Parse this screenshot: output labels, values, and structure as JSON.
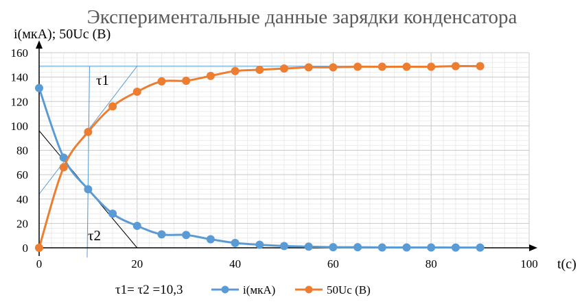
{
  "chart_data": {
    "type": "line",
    "title": "Экспериментальные данные зарядки конденсатора",
    "ylabel": "i(мкА); 50Uc (В)",
    "xlabel": "t(c)",
    "xlim": [
      0,
      100
    ],
    "ylim": [
      0,
      160
    ],
    "x_ticks": [
      "0",
      "20",
      "40",
      "60",
      "80",
      "100"
    ],
    "y_ticks": [
      "0",
      "20",
      "40",
      "60",
      "80",
      "100",
      "120",
      "140",
      "160"
    ],
    "grid": true,
    "legend_placement": "bottom",
    "x": [
      0,
      5,
      10,
      15,
      20,
      25,
      30,
      35,
      40,
      45,
      50,
      55,
      60,
      65,
      70,
      75,
      80,
      85,
      90
    ],
    "series": [
      {
        "name": "i(мкА)",
        "color": "#5B9BD5",
        "values": [
          131,
          74,
          48,
          28,
          18,
          11,
          10.5,
          7,
          4,
          2.5,
          1.5,
          1,
          0.5,
          0.5,
          0.3,
          0.3,
          0.3,
          0.2,
          0.2
        ]
      },
      {
        "name": "50Uc (В)",
        "color": "#ED7D31",
        "values": [
          0,
          66,
          95,
          116,
          128,
          136.5,
          137,
          141,
          145,
          146,
          147,
          148,
          148,
          148.5,
          148.5,
          148.5,
          148.5,
          149,
          149
        ]
      }
    ],
    "annotations": {
      "tau1_label": "τ1",
      "tau2_label": "τ2",
      "footer": "τ1= τ2 =10,3"
    }
  }
}
